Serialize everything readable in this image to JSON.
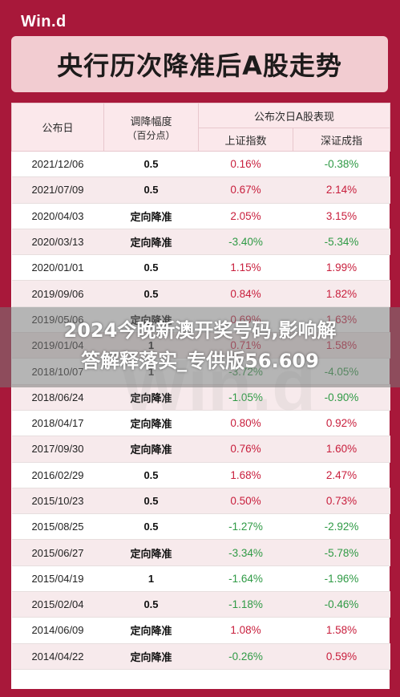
{
  "brand": "Win.d",
  "title": "央行历次降准后A股走势",
  "headers": {
    "date": "公布日",
    "rate_line1": "调降幅度",
    "rate_line2": "（百分点）",
    "group": "公布次日A股表现",
    "sh": "上证指数",
    "sz": "深证成指"
  },
  "colors": {
    "positive": "#c81e3c",
    "negative": "#2f9a45",
    "frame": "#a8183a"
  },
  "rows": [
    {
      "date": "2021/12/06",
      "rate": "0.5",
      "sh": "0.16%",
      "sz": "-0.38%"
    },
    {
      "date": "2021/07/09",
      "rate": "0.5",
      "sh": "0.67%",
      "sz": "2.14%"
    },
    {
      "date": "2020/04/03",
      "rate": "定向降准",
      "sh": "2.05%",
      "sz": "3.15%"
    },
    {
      "date": "2020/03/13",
      "rate": "定向降准",
      "sh": "-3.40%",
      "sz": "-5.34%"
    },
    {
      "date": "2020/01/01",
      "rate": "0.5",
      "sh": "1.15%",
      "sz": "1.99%"
    },
    {
      "date": "2019/09/06",
      "rate": "0.5",
      "sh": "0.84%",
      "sz": "1.82%"
    },
    {
      "date": "2019/05/06",
      "rate": "定向降准",
      "sh": "0.69%",
      "sz": "1.63%"
    },
    {
      "date": "2019/01/04",
      "rate": "1",
      "sh": "0.71%",
      "sz": "1.58%"
    },
    {
      "date": "2018/10/07",
      "rate": "1",
      "sh": "-3.72%",
      "sz": "-4.05%"
    },
    {
      "date": "2018/06/24",
      "rate": "定向降准",
      "sh": "-1.05%",
      "sz": "-0.90%"
    },
    {
      "date": "2018/04/17",
      "rate": "定向降准",
      "sh": "0.80%",
      "sz": "0.92%"
    },
    {
      "date": "2017/09/30",
      "rate": "定向降准",
      "sh": "0.76%",
      "sz": "1.60%"
    },
    {
      "date": "2016/02/29",
      "rate": "0.5",
      "sh": "1.68%",
      "sz": "2.47%"
    },
    {
      "date": "2015/10/23",
      "rate": "0.5",
      "sh": "0.50%",
      "sz": "0.73%"
    },
    {
      "date": "2015/08/25",
      "rate": "0.5",
      "sh": "-1.27%",
      "sz": "-2.92%"
    },
    {
      "date": "2015/06/27",
      "rate": "定向降准",
      "sh": "-3.34%",
      "sz": "-5.78%"
    },
    {
      "date": "2015/04/19",
      "rate": "1",
      "sh": "-1.64%",
      "sz": "-1.96%"
    },
    {
      "date": "2015/02/04",
      "rate": "0.5",
      "sh": "-1.18%",
      "sz": "-0.46%"
    },
    {
      "date": "2014/06/09",
      "rate": "定向降准",
      "sh": "1.08%",
      "sz": "1.58%"
    },
    {
      "date": "2014/04/22",
      "rate": "定向降准",
      "sh": "-0.26%",
      "sz": "0.59%"
    }
  ],
  "overlay": {
    "line1": "2024今晚新澳开奖号码,影响解",
    "line2": "答解释落实_专供版56.609"
  }
}
